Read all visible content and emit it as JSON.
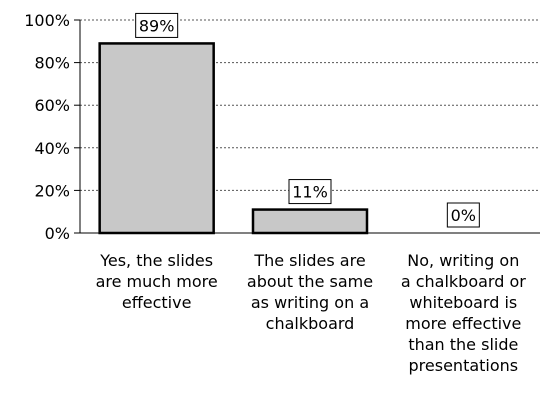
{
  "chart_data": {
    "type": "bar",
    "categories": [
      "Yes, the slides are much more effective",
      "The slides are about the same as writing on a chalkboard",
      "No, writing on a chalkboard or whiteboard is more effective than the slide presentations"
    ],
    "category_lines": [
      [
        "Yes, the slides",
        "are much more",
        "effective"
      ],
      [
        "The slides are",
        "about the same",
        "as writing on a",
        "chalkboard"
      ],
      [
        "No, writing on",
        "a chalkboard or",
        "whiteboard is",
        "more effective",
        "than the slide",
        "presentations"
      ]
    ],
    "values": [
      89,
      11,
      0
    ],
    "data_labels": [
      "89%",
      "11%",
      "0%"
    ],
    "ylim": [
      0,
      100
    ],
    "y_ticks": [
      0,
      20,
      40,
      60,
      80,
      100
    ],
    "y_tick_labels": [
      "0%",
      "20%",
      "40%",
      "60%",
      "80%",
      "100%"
    ],
    "grid": "dashed horizontal",
    "bar_color": "#c8c8c8",
    "bar_edge_color": "#000000",
    "title": "",
    "xlabel": "",
    "ylabel": ""
  }
}
